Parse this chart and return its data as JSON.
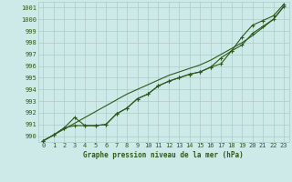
{
  "title": "Graphe pression niveau de la mer (hPa)",
  "bg_color": "#ceeae8",
  "grid_color": "#a8ceca",
  "line_color": "#2d5a1b",
  "xlim": [
    -0.5,
    23.5
  ],
  "ylim": [
    989.5,
    1001.5
  ],
  "yticks": [
    990,
    991,
    992,
    993,
    994,
    995,
    996,
    997,
    998,
    999,
    1000,
    1001
  ],
  "xticks": [
    0,
    1,
    2,
    3,
    4,
    5,
    6,
    7,
    8,
    9,
    10,
    11,
    12,
    13,
    14,
    15,
    16,
    17,
    18,
    19,
    20,
    21,
    22,
    23
  ],
  "series_straight": [
    989.6,
    990.1,
    990.6,
    991.1,
    991.6,
    992.1,
    992.6,
    993.1,
    993.6,
    994.0,
    994.4,
    994.8,
    995.2,
    995.5,
    995.8,
    996.1,
    996.5,
    997.0,
    997.5,
    998.0,
    998.6,
    999.3,
    1000.0,
    1001.1
  ],
  "series_upper": [
    989.6,
    990.1,
    990.7,
    991.6,
    990.9,
    990.9,
    991.0,
    991.9,
    992.4,
    993.2,
    993.6,
    994.3,
    994.7,
    995.0,
    995.3,
    995.5,
    995.9,
    996.7,
    997.3,
    998.5,
    999.5,
    999.9,
    1000.3,
    1001.3
  ],
  "series_lower": [
    989.6,
    990.1,
    990.7,
    990.9,
    990.9,
    990.9,
    991.0,
    991.9,
    992.4,
    993.2,
    993.6,
    994.3,
    994.7,
    995.0,
    995.3,
    995.5,
    995.9,
    996.2,
    997.3,
    997.8,
    998.8,
    999.4,
    1000.0,
    1001.1
  ]
}
